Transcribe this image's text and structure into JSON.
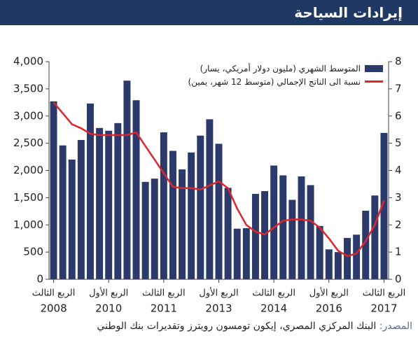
{
  "chart_data": {
    "type": "bar-line",
    "title": "إيرادات السياحة",
    "source_label": "المصدر:",
    "source": "البنك المركزي المصري، إيكون تومسون رويترز وتقديرات بنك الوطني",
    "categories": [
      "الربع الثالث",
      null,
      null,
      null,
      null,
      null,
      "الربع الأول",
      null,
      null,
      null,
      null,
      null,
      "الربع الثالث",
      null,
      null,
      null,
      null,
      null,
      "الربع الأول",
      null,
      null,
      null,
      null,
      null,
      "الربع الثالث",
      null,
      null,
      null,
      null,
      null,
      "الربع الأول",
      null,
      null,
      null,
      null,
      null,
      "الربع الثالث"
    ],
    "category_years": [
      "2008",
      null,
      null,
      null,
      null,
      null,
      "2010",
      null,
      null,
      null,
      null,
      null,
      "2011",
      null,
      null,
      null,
      null,
      null,
      "2013",
      null,
      null,
      null,
      null,
      null,
      "2014",
      null,
      null,
      null,
      null,
      null,
      "2016",
      null,
      null,
      null,
      null,
      null,
      "2017"
    ],
    "series": [
      {
        "name": "المتوسط الشهري (مليون دولار أمريكي، يسار)",
        "color": "#2b3a6b",
        "kind": "bar",
        "values": [
          3270,
          2460,
          2200,
          2560,
          3230,
          2780,
          2730,
          2870,
          3650,
          3290,
          1790,
          1850,
          2700,
          2360,
          2020,
          2330,
          2640,
          2940,
          2490,
          1680,
          930,
          940,
          1570,
          1620,
          2090,
          1910,
          1460,
          1890,
          1730,
          980,
          550,
          500,
          760,
          820,
          1260,
          1540,
          2690
        ]
      },
      {
        "name": "نسبة الى الناتج الإجمالي (متوسط 12 شهر، يمين)",
        "color": "#e0262b",
        "kind": "line",
        "axis": "y2",
        "values": [
          6.5,
          6.1,
          5.7,
          5.55,
          5.35,
          5.3,
          5.3,
          5.3,
          5.3,
          5.4,
          4.9,
          4.4,
          3.9,
          3.4,
          3.35,
          3.35,
          3.3,
          3.45,
          3.6,
          3.35,
          2.6,
          2.0,
          1.75,
          1.65,
          1.9,
          2.15,
          2.2,
          2.2,
          2.15,
          1.9,
          1.5,
          1.05,
          0.85,
          0.95,
          1.4,
          2.0,
          2.9
        ]
      }
    ],
    "ylim": [
      0,
      4000
    ],
    "yticks": [
      0,
      500,
      {
        "value": 1000,
        "label": "1,000"
      },
      {
        "value": 1500,
        "label": "1,500"
      },
      {
        "value": 2000,
        "label": "2,000"
      },
      {
        "value": 2500,
        "label": "2,500"
      },
      {
        "value": 3000,
        "label": "3,000"
      },
      {
        "value": 3500,
        "label": "3,500"
      },
      {
        "value": 4000,
        "label": "4,000"
      }
    ],
    "y2lim": [
      0,
      8
    ],
    "y2ticks": [
      0,
      1,
      2,
      3,
      4,
      5,
      6,
      7,
      8
    ],
    "grid": false,
    "legend": "top-right"
  }
}
